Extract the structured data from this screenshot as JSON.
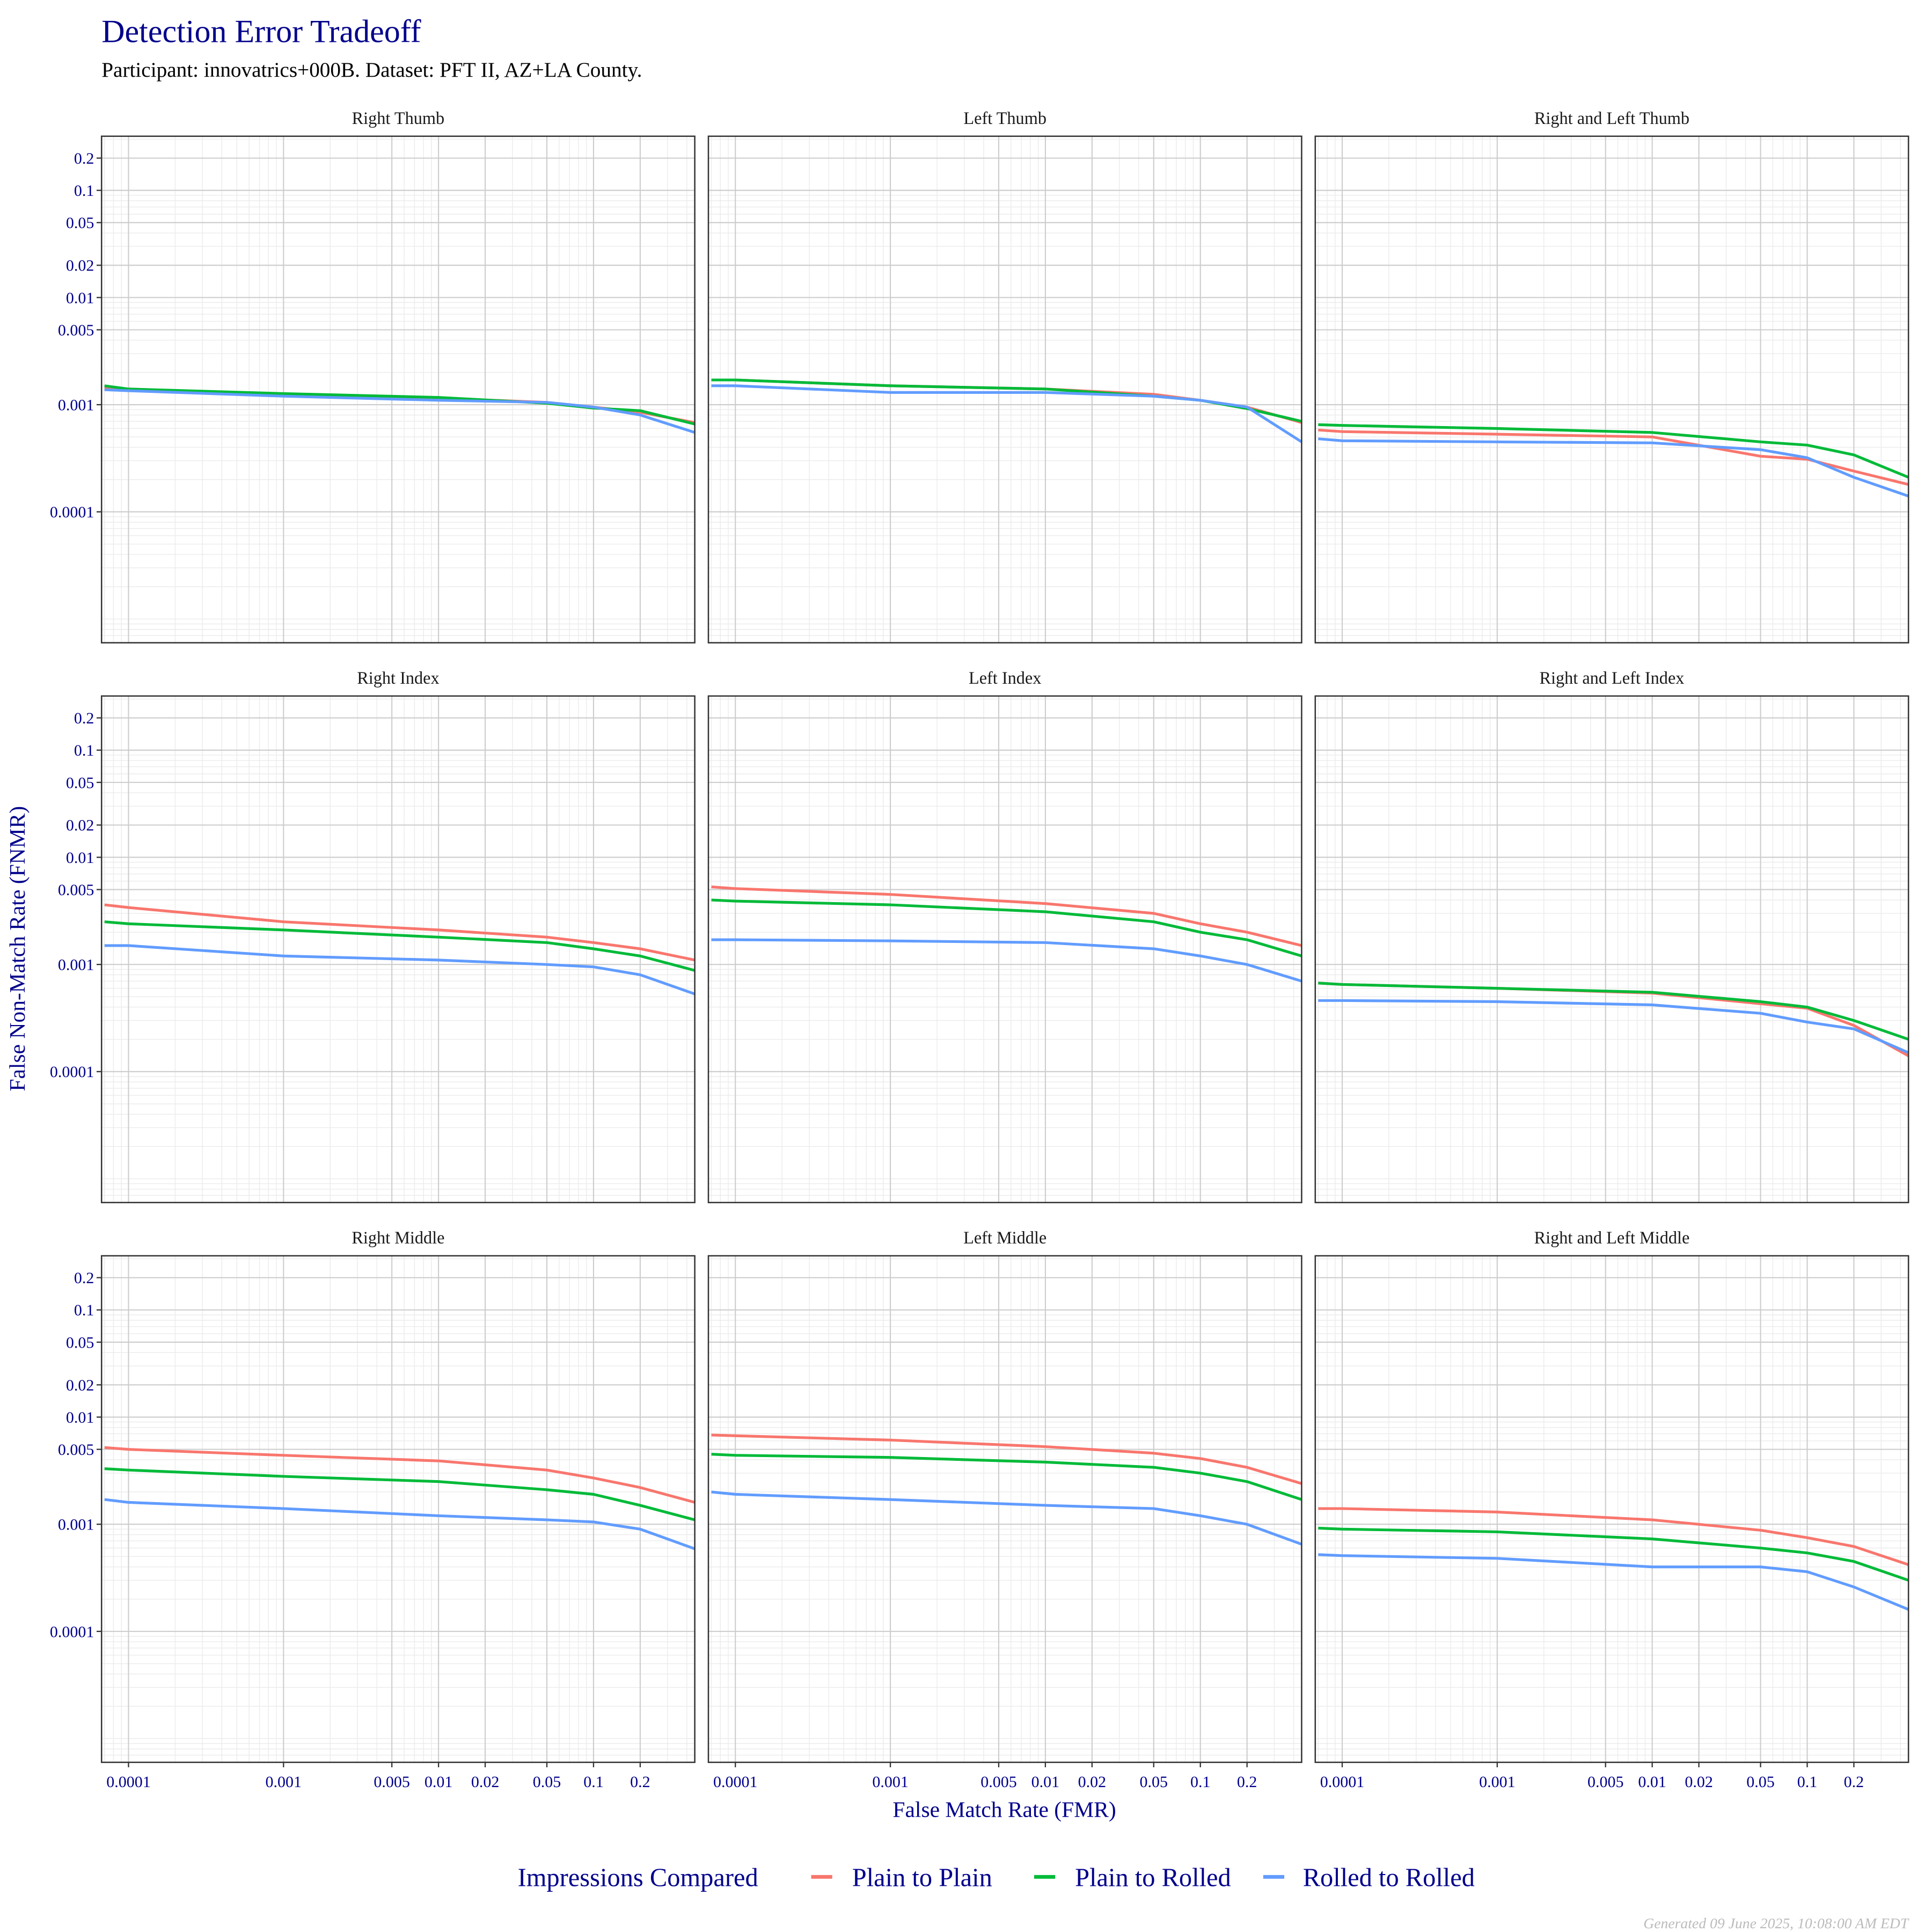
{
  "title": "Detection Error Tradeoff",
  "subtitle": "Participant: innovatrics+000B. Dataset: PFT II, AZ+LA County.",
  "footer": "Generated 09 June 2025, 10:08:00 AM EDT",
  "legend": {
    "title": "Impressions Compared",
    "items": [
      {
        "label": "Plain to Plain",
        "color": "#F8766D"
      },
      {
        "label": "Plain to Rolled",
        "color": "#00BA38"
      },
      {
        "label": "Rolled to Rolled",
        "color": "#619CFF"
      }
    ],
    "placement": "bottom"
  },
  "chart_data": {
    "type": "line",
    "xlabel": "False Match Rate (FMR)",
    "ylabel": "False Non-Match Rate (FNMR)",
    "x_scale": "log",
    "y_scale": "log",
    "xlim": [
      6.7e-05,
      0.45
    ],
    "ylim": [
      6e-06,
      0.32
    ],
    "grid": true,
    "x_ticks": [
      "0.0001",
      "0.001",
      "0.005",
      "0.01",
      "0.02",
      "0.05",
      "0.1",
      "0.2"
    ],
    "y_ticks": [
      "0.2",
      "0.1",
      "0.05",
      "0.02",
      "0.01",
      "0.005",
      "0.001",
      "0.0001"
    ],
    "x": [
      7e-05,
      0.0001,
      0.001,
      0.01,
      0.05,
      0.1,
      0.2,
      0.45
    ],
    "panels": [
      {
        "title": "Right Thumb",
        "series": [
          {
            "name": "Plain to Plain",
            "values": [
              0.00145,
              0.0014,
              0.00125,
              0.00115,
              0.00105,
              0.00095,
              0.00085,
              0.00068
            ]
          },
          {
            "name": "Plain to Rolled",
            "values": [
              0.0015,
              0.0014,
              0.00127,
              0.00117,
              0.00103,
              0.00093,
              0.00088,
              0.00066
            ]
          },
          {
            "name": "Rolled to Rolled",
            "values": [
              0.00138,
              0.00135,
              0.0012,
              0.0011,
              0.00105,
              0.00095,
              0.0008,
              0.00055
            ]
          }
        ]
      },
      {
        "title": "Left Thumb",
        "series": [
          {
            "name": "Plain to Plain",
            "values": [
              0.0017,
              0.0017,
              0.0015,
              0.0014,
              0.00125,
              0.0011,
              0.00095,
              0.00068
            ]
          },
          {
            "name": "Plain to Rolled",
            "values": [
              0.0017,
              0.0017,
              0.0015,
              0.0014,
              0.0012,
              0.0011,
              0.00092,
              0.0007
            ]
          },
          {
            "name": "Rolled to Rolled",
            "values": [
              0.0015,
              0.0015,
              0.0013,
              0.0013,
              0.0012,
              0.0011,
              0.00095,
              0.00045
            ]
          }
        ]
      },
      {
        "title": "Right and Left Thumb",
        "series": [
          {
            "name": "Plain to Plain",
            "values": [
              0.00058,
              0.00056,
              0.00053,
              0.0005,
              0.00033,
              0.00031,
              0.00024,
              0.00018
            ]
          },
          {
            "name": "Plain to Rolled",
            "values": [
              0.00065,
              0.00064,
              0.0006,
              0.00055,
              0.00045,
              0.00042,
              0.00034,
              0.00021
            ]
          },
          {
            "name": "Rolled to Rolled",
            "values": [
              0.00048,
              0.00046,
              0.00045,
              0.00044,
              0.00038,
              0.00032,
              0.00021,
              0.00014
            ]
          }
        ]
      },
      {
        "title": "Right Index",
        "series": [
          {
            "name": "Plain to Plain",
            "values": [
              0.0036,
              0.0034,
              0.0025,
              0.0021,
              0.0018,
              0.0016,
              0.0014,
              0.0011
            ]
          },
          {
            "name": "Plain to Rolled",
            "values": [
              0.0025,
              0.0024,
              0.0021,
              0.0018,
              0.0016,
              0.0014,
              0.0012,
              0.00088
            ]
          },
          {
            "name": "Rolled to Rolled",
            "values": [
              0.0015,
              0.0015,
              0.0012,
              0.0011,
              0.001,
              0.00095,
              0.0008,
              0.00053
            ]
          }
        ]
      },
      {
        "title": "Left Index",
        "series": [
          {
            "name": "Plain to Plain",
            "values": [
              0.0053,
              0.0051,
              0.0045,
              0.0037,
              0.003,
              0.0024,
              0.002,
              0.0015
            ]
          },
          {
            "name": "Plain to Rolled",
            "values": [
              0.004,
              0.0039,
              0.0036,
              0.0031,
              0.0025,
              0.002,
              0.0017,
              0.0012
            ]
          },
          {
            "name": "Rolled to Rolled",
            "values": [
              0.0017,
              0.0017,
              0.00166,
              0.0016,
              0.0014,
              0.0012,
              0.001,
              0.0007
            ]
          }
        ]
      },
      {
        "title": "Right and Left Index",
        "series": [
          {
            "name": "Plain to Plain",
            "values": [
              0.00067,
              0.00065,
              0.0006,
              0.00054,
              0.00043,
              0.00039,
              0.00027,
              0.00014
            ]
          },
          {
            "name": "Plain to Rolled",
            "values": [
              0.00067,
              0.00065,
              0.0006,
              0.00055,
              0.00045,
              0.0004,
              0.0003,
              0.0002
            ]
          },
          {
            "name": "Rolled to Rolled",
            "values": [
              0.00046,
              0.00046,
              0.00045,
              0.00042,
              0.00035,
              0.00029,
              0.00025,
              0.00015
            ]
          }
        ]
      },
      {
        "title": "Right Middle",
        "series": [
          {
            "name": "Plain to Plain",
            "values": [
              0.0052,
              0.005,
              0.0044,
              0.0039,
              0.0032,
              0.0027,
              0.0022,
              0.0016
            ]
          },
          {
            "name": "Plain to Rolled",
            "values": [
              0.0033,
              0.0032,
              0.0028,
              0.0025,
              0.0021,
              0.0019,
              0.0015,
              0.0011
            ]
          },
          {
            "name": "Rolled to Rolled",
            "values": [
              0.0017,
              0.0016,
              0.0014,
              0.0012,
              0.0011,
              0.00105,
              0.0009,
              0.00059
            ]
          }
        ]
      },
      {
        "title": "Left Middle",
        "series": [
          {
            "name": "Plain to Plain",
            "values": [
              0.0068,
              0.0067,
              0.0061,
              0.0053,
              0.0046,
              0.0041,
              0.0034,
              0.0024
            ]
          },
          {
            "name": "Plain to Rolled",
            "values": [
              0.0045,
              0.0044,
              0.0042,
              0.0038,
              0.0034,
              0.003,
              0.0025,
              0.0017
            ]
          },
          {
            "name": "Rolled to Rolled",
            "values": [
              0.002,
              0.0019,
              0.0017,
              0.0015,
              0.0014,
              0.0012,
              0.001,
              0.00065
            ]
          }
        ]
      },
      {
        "title": "Right and Left Middle",
        "series": [
          {
            "name": "Plain to Plain",
            "values": [
              0.0014,
              0.0014,
              0.0013,
              0.0011,
              0.00088,
              0.00075,
              0.00062,
              0.00042
            ]
          },
          {
            "name": "Plain to Rolled",
            "values": [
              0.00092,
              0.0009,
              0.00085,
              0.00073,
              0.0006,
              0.00054,
              0.00045,
              0.0003
            ]
          },
          {
            "name": "Rolled to Rolled",
            "values": [
              0.00052,
              0.00051,
              0.00048,
              0.0004,
              0.0004,
              0.00036,
              0.00026,
              0.00016
            ]
          }
        ]
      }
    ]
  }
}
